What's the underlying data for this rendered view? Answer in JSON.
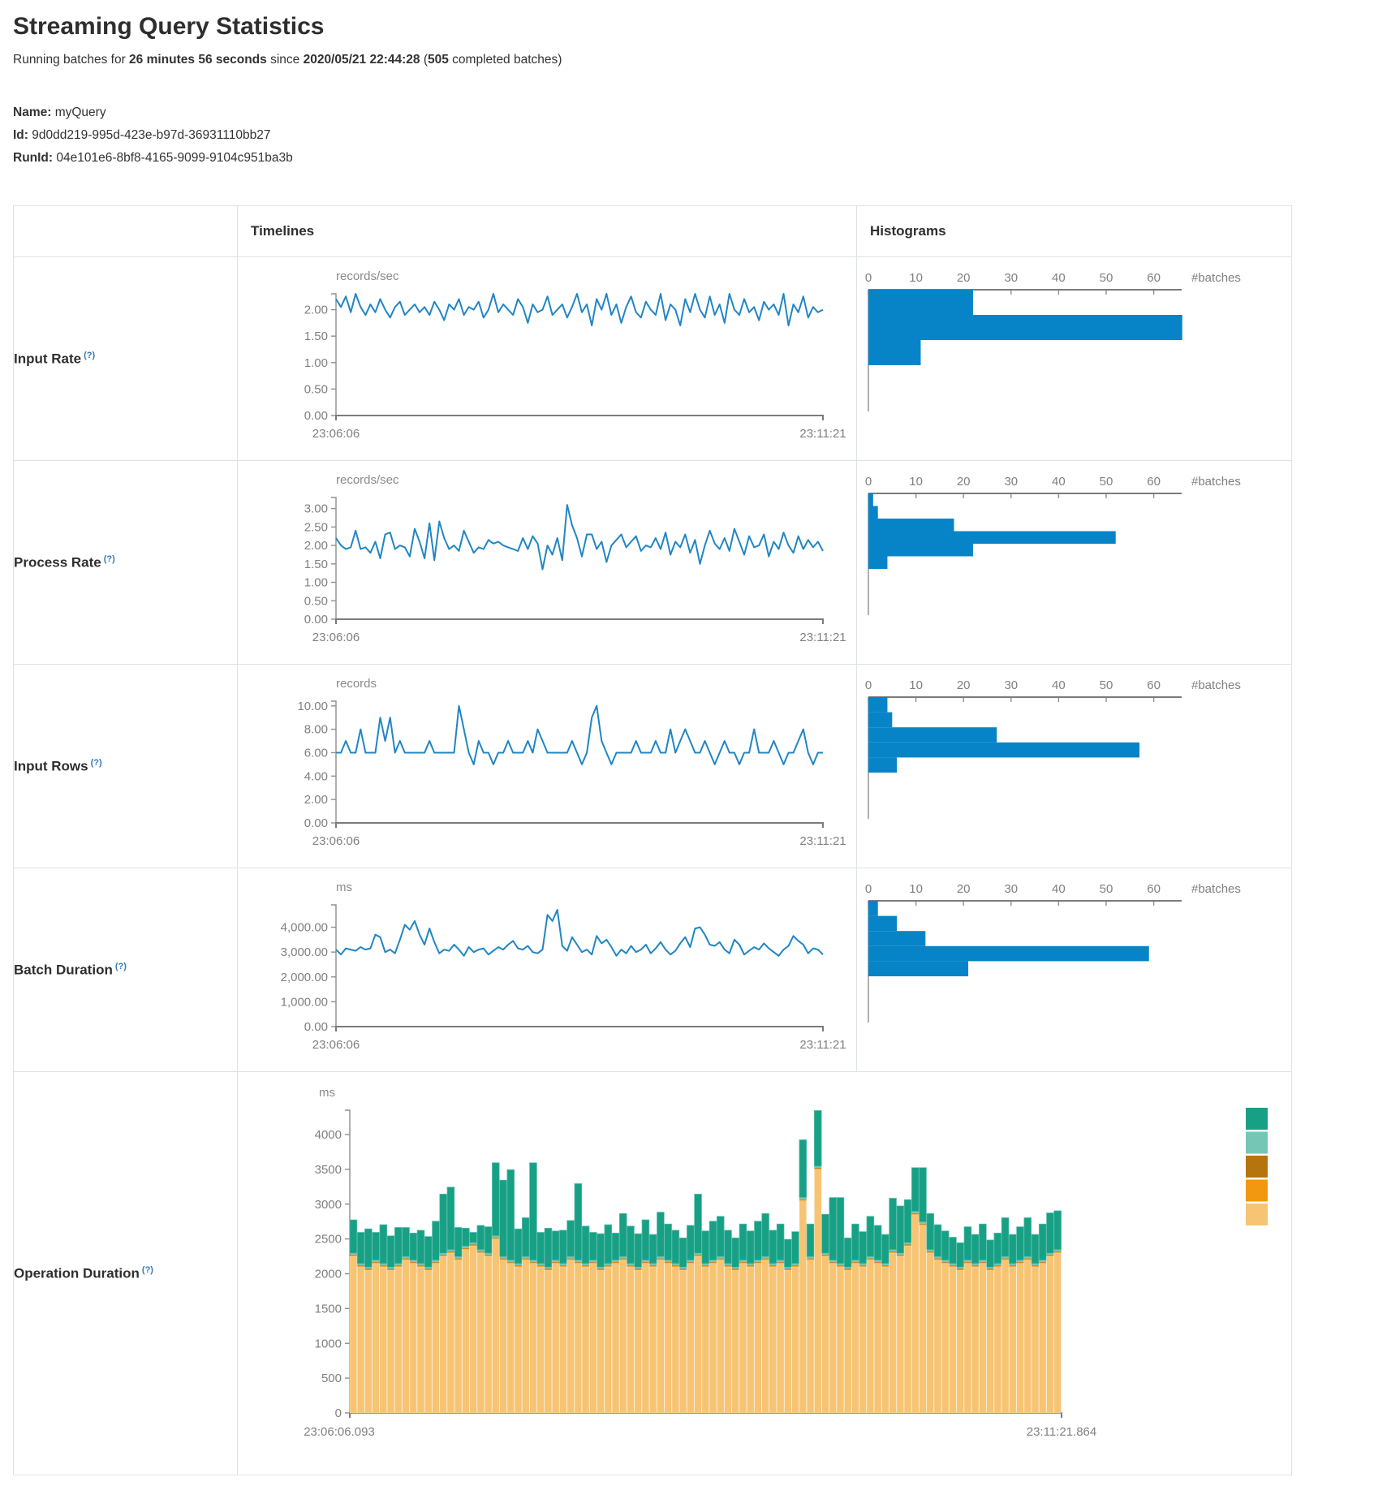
{
  "page": {
    "title": "Streaming Query Statistics",
    "subtitle": {
      "prefix": "Running batches for ",
      "duration": "26 minutes 56 seconds",
      "since": " since ",
      "start_time": "2020/05/21 22:44:28",
      "paren": " (",
      "completed_batches": "505",
      "suffix": " completed batches)"
    },
    "meta": {
      "name_label": "Name:",
      "name": " myQuery",
      "id_label": "Id:",
      "id": " 9d0dd219-995d-423e-b97d-36931110bb27",
      "runid_label": "RunId:",
      "runid": " 04e101e6-8bf8-4165-9099-9104c951ba3b"
    }
  },
  "table": {
    "timelines_header": "Timelines",
    "histograms_header": "Histograms",
    "help_marker": "(?)",
    "rows": [
      {
        "label": "Input Rate"
      },
      {
        "label": "Process Rate"
      },
      {
        "label": "Input Rows"
      },
      {
        "label": "Batch Duration"
      },
      {
        "label": "Operation Duration"
      }
    ]
  },
  "colors": {
    "line": "#2086C4",
    "histogram_bar": "#0784C8",
    "axis": "#8f8f8f",
    "tick_text": "#808080",
    "legend": [
      "#18A085",
      "#76C6B6",
      "#B6740F",
      "#F29710",
      "#F7C474"
    ]
  },
  "chart_data": [
    {
      "id": "input-rate-timeline",
      "type": "line",
      "title": "records/sec",
      "x": [
        "23:06:06",
        "23:11:21"
      ],
      "ylim": [
        0,
        2.3
      ],
      "grid": false,
      "yticks": [
        {
          "v": 2,
          "t": "2.00"
        },
        {
          "v": 1.5,
          "t": "1.50"
        },
        {
          "v": 1,
          "t": "1.00"
        },
        {
          "v": 0.5,
          "t": "0.50"
        },
        {
          "v": 0,
          "t": "0.00"
        }
      ],
      "values": [
        2.2,
        2.05,
        2.25,
        1.95,
        2.3,
        2.05,
        1.9,
        2.1,
        1.95,
        2.2,
        2.0,
        1.85,
        2.05,
        2.15,
        1.9,
        2.0,
        2.1,
        1.95,
        2.05,
        1.9,
        2.15,
        2.0,
        1.8,
        2.1,
        2.0,
        2.2,
        1.9,
        2.05,
        2.0,
        2.15,
        1.85,
        2.0,
        2.3,
        1.95,
        2.1,
        2.0,
        1.9,
        2.2,
        2.05,
        1.75,
        2.1,
        1.95,
        2.0,
        2.25,
        1.9,
        2.0,
        2.1,
        1.85,
        2.05,
        2.3,
        1.95,
        2.1,
        1.7,
        2.2,
        2.0,
        2.3,
        1.9,
        2.1,
        1.75,
        2.05,
        2.25,
        1.95,
        1.85,
        2.15,
        2.0,
        1.9,
        2.3,
        1.8,
        2.1,
        2.0,
        1.7,
        2.2,
        1.95,
        2.3,
        2.0,
        1.85,
        2.25,
        1.9,
        2.1,
        1.75,
        2.3,
        2.0,
        1.9,
        2.2,
        1.95,
        2.05,
        1.8,
        2.15,
        2.0,
        2.1,
        1.9,
        2.3,
        1.7,
        2.1,
        1.95,
        2.25,
        1.85,
        2.05,
        1.95,
        2.0
      ]
    },
    {
      "id": "input-rate-histogram",
      "type": "bar",
      "orientation": "horizontal",
      "xlabel": "#batches",
      "xticks": [
        0,
        10,
        20,
        30,
        40,
        50,
        60
      ],
      "xlim": [
        0,
        68
      ],
      "values": [
        22,
        66,
        11
      ]
    },
    {
      "id": "process-rate-timeline",
      "type": "line",
      "title": "records/sec",
      "x": [
        "23:06:06",
        "23:11:21"
      ],
      "ylim": [
        0,
        3.3
      ],
      "grid": false,
      "yticks": [
        {
          "v": 3,
          "t": "3.00"
        },
        {
          "v": 2.5,
          "t": "2.50"
        },
        {
          "v": 2,
          "t": "2.00"
        },
        {
          "v": 1.5,
          "t": "1.50"
        },
        {
          "v": 1,
          "t": "1.00"
        },
        {
          "v": 0.5,
          "t": "0.50"
        },
        {
          "v": 0,
          "t": "0.00"
        }
      ],
      "values": [
        2.2,
        2.0,
        1.9,
        1.95,
        2.4,
        1.9,
        1.95,
        1.8,
        2.1,
        1.65,
        2.3,
        2.35,
        1.9,
        2.0,
        1.95,
        1.7,
        2.45,
        2.1,
        1.65,
        2.6,
        1.6,
        2.65,
        2.2,
        1.9,
        2.0,
        1.85,
        2.4,
        2.1,
        1.8,
        1.95,
        1.9,
        2.15,
        2.05,
        2.1,
        2.0,
        1.95,
        1.9,
        1.85,
        2.2,
        1.9,
        2.25,
        2.05,
        1.35,
        2.0,
        1.75,
        2.2,
        1.6,
        3.1,
        2.55,
        2.2,
        1.7,
        2.3,
        2.3,
        1.9,
        2.1,
        1.55,
        2.0,
        2.15,
        2.3,
        1.95,
        2.1,
        2.25,
        1.85,
        2.0,
        1.95,
        2.2,
        1.9,
        2.35,
        1.75,
        2.1,
        1.95,
        2.3,
        1.8,
        2.15,
        1.5,
        2.0,
        2.4,
        2.05,
        1.9,
        2.2,
        1.85,
        2.45,
        2.1,
        1.75,
        2.25,
        1.95,
        2.0,
        2.3,
        1.7,
        2.1,
        1.9,
        2.35,
        2.0,
        1.8,
        2.25,
        1.9,
        2.15,
        1.95,
        2.1,
        1.85
      ]
    },
    {
      "id": "process-rate-histogram",
      "type": "bar",
      "orientation": "horizontal",
      "xlabel": "#batches",
      "xticks": [
        0,
        10,
        20,
        30,
        40,
        50,
        60
      ],
      "xlim": [
        0,
        68
      ],
      "values": [
        1,
        2,
        18,
        52,
        22,
        4
      ]
    },
    {
      "id": "input-rows-timeline",
      "type": "line",
      "title": "records",
      "x": [
        "23:06:06",
        "23:11:21"
      ],
      "ylim": [
        0,
        10.4
      ],
      "grid": false,
      "yticks": [
        {
          "v": 10,
          "t": "10.00"
        },
        {
          "v": 8,
          "t": "8.00"
        },
        {
          "v": 6,
          "t": "6.00"
        },
        {
          "v": 4,
          "t": "4.00"
        },
        {
          "v": 2,
          "t": "2.00"
        },
        {
          "v": 0,
          "t": "0.00"
        }
      ],
      "values": [
        6,
        6,
        7,
        6,
        6,
        8,
        6,
        6,
        6,
        9,
        7,
        9,
        6,
        7,
        6,
        6,
        6,
        6,
        6,
        7,
        6,
        6,
        6,
        6,
        6,
        10,
        8,
        6,
        5,
        7,
        6,
        6,
        5,
        6,
        6,
        7,
        6,
        6,
        6,
        7,
        6,
        8,
        7,
        6,
        6,
        6,
        6,
        6,
        7,
        6,
        5,
        6,
        9,
        10,
        7,
        6,
        5,
        6,
        6,
        6,
        6,
        7,
        6,
        6,
        6,
        7,
        6,
        6,
        8,
        6,
        7,
        8,
        7,
        6,
        6,
        7,
        6,
        5,
        6,
        7,
        6,
        6,
        5,
        6,
        6,
        8,
        6,
        6,
        6,
        7,
        6,
        5,
        6,
        6,
        7,
        8,
        6,
        5,
        6,
        6
      ]
    },
    {
      "id": "input-rows-histogram",
      "type": "bar",
      "orientation": "horizontal",
      "xlabel": "#batches",
      "xticks": [
        0,
        10,
        20,
        30,
        40,
        50,
        60
      ],
      "xlim": [
        0,
        68
      ],
      "values": [
        4,
        5,
        27,
        57,
        6
      ]
    },
    {
      "id": "batch-duration-timeline",
      "type": "line",
      "title": "ms",
      "x": [
        "23:06:06",
        "23:11:21"
      ],
      "ylim": [
        0,
        4900
      ],
      "grid": false,
      "yticks": [
        {
          "v": 4000,
          "t": "4,000.00"
        },
        {
          "v": 3000,
          "t": "3,000.00"
        },
        {
          "v": 2000,
          "t": "2,000.00"
        },
        {
          "v": 1000,
          "t": "1,000.00"
        },
        {
          "v": 0,
          "t": "0.00"
        }
      ],
      "values": [
        3100,
        2900,
        3150,
        3100,
        3050,
        3200,
        3100,
        3150,
        3700,
        3600,
        3000,
        3100,
        2950,
        3500,
        4100,
        3900,
        4250,
        3700,
        3300,
        3950,
        3400,
        2950,
        3100,
        3050,
        3300,
        3100,
        2850,
        3200,
        3000,
        3100,
        3150,
        2900,
        3050,
        3200,
        3100,
        3300,
        3450,
        3150,
        3100,
        3250,
        3000,
        2950,
        3100,
        4500,
        4250,
        4700,
        3250,
        3050,
        3600,
        3300,
        3000,
        3100,
        2900,
        3650,
        3350,
        3500,
        3200,
        2850,
        3100,
        2950,
        3250,
        3000,
        3100,
        3300,
        2950,
        3150,
        3400,
        3100,
        2900,
        3050,
        3350,
        3600,
        3200,
        3950,
        4000,
        3700,
        3300,
        3250,
        3400,
        3100,
        2950,
        3500,
        3300,
        2900,
        3050,
        3200,
        3100,
        3350,
        3150,
        3000,
        2850,
        3100,
        3250,
        3650,
        3450,
        3300,
        2950,
        3150,
        3100,
        2900
      ]
    },
    {
      "id": "batch-duration-histogram",
      "type": "bar",
      "orientation": "horizontal",
      "xlabel": "#batches",
      "xticks": [
        0,
        10,
        20,
        30,
        40,
        50,
        60
      ],
      "xlim": [
        0,
        68
      ],
      "values": [
        2,
        6,
        12,
        59,
        21
      ]
    },
    {
      "id": "operation-duration-stacked",
      "type": "bar",
      "stacked": true,
      "title": "ms",
      "x": [
        "23:06:06.093",
        "23:11:21.864"
      ],
      "ylim": [
        0,
        4350
      ],
      "grid": false,
      "legend_position": "right",
      "legend_colors": [
        "#18A085",
        "#76C6B6",
        "#B6740F",
        "#F29710",
        "#F7C474"
      ],
      "yticks": [
        {
          "v": 4000,
          "t": "4000"
        },
        {
          "v": 3500,
          "t": "3500"
        },
        {
          "v": 3000,
          "t": "3000"
        },
        {
          "v": 2500,
          "t": "2500"
        },
        {
          "v": 2000,
          "t": "2000"
        },
        {
          "v": 1500,
          "t": "1500"
        },
        {
          "v": 1000,
          "t": "1000"
        },
        {
          "v": 500,
          "t": "500"
        },
        {
          "v": 0,
          "t": "0"
        }
      ],
      "series": [
        {
          "name": "base-duration",
          "color": "#F7C474",
          "stroke": "rgba(255,255,255,0.45)",
          "values": [
            2250,
            2100,
            2050,
            2150,
            2100,
            2050,
            2100,
            2200,
            2150,
            2100,
            2050,
            2150,
            2250,
            2300,
            2200,
            2350,
            2400,
            2300,
            2250,
            2500,
            2200,
            2150,
            2100,
            2200,
            2150,
            2100,
            2050,
            2150,
            2100,
            2200,
            2150,
            2100,
            2150,
            2050,
            2100,
            2150,
            2200,
            2100,
            2050,
            2150,
            2100,
            2200,
            2150,
            2100,
            2050,
            2150,
            2250,
            2100,
            2150,
            2200,
            2100,
            2050,
            2150,
            2100,
            2150,
            2200,
            2100,
            2150,
            2050,
            2100,
            3050,
            2200,
            3500,
            2250,
            2150,
            2100,
            2050,
            2150,
            2100,
            2200,
            2150,
            2100,
            2300,
            2250,
            2400,
            2850,
            2700,
            2300,
            2200,
            2150,
            2100,
            2050,
            2150,
            2100,
            2150,
            2050,
            2100,
            2200,
            2100,
            2150,
            2200,
            2100,
            2150,
            2250,
            2300
          ]
        },
        {
          "name": "layer-2",
          "color": "#F29710",
          "constant": 10
        },
        {
          "name": "layer-3",
          "color": "#B6740F",
          "constant": 10
        },
        {
          "name": "layer-4",
          "color": "#76C6B6",
          "constant": 25
        },
        {
          "name": "top-duration",
          "color": "#18A085",
          "stroke": "#5FBFAE",
          "values": [
            480,
            450,
            550,
            400,
            560,
            450,
            520,
            420,
            390,
            480,
            440,
            560,
            850,
            900,
            420,
            260,
            150,
            350,
            380,
            1050,
            1100,
            1300,
            500,
            560,
            1400,
            450,
            560,
            420,
            480,
            520,
            1100,
            540,
            400,
            480,
            560,
            390,
            620,
            540,
            480,
            580,
            420,
            640,
            520,
            480,
            420,
            500,
            850,
            470,
            560,
            580,
            480,
            420,
            520,
            470,
            560,
            620,
            480,
            520,
            400,
            460,
            830,
            470,
            800,
            560,
            900,
            950,
            420,
            520,
            460,
            580,
            500,
            420,
            740,
            680,
            620,
            630,
            780,
            520,
            460,
            420,
            380,
            350,
            480,
            420,
            520,
            390,
            440,
            560,
            420,
            480,
            560,
            420,
            520,
            580,
            560
          ]
        }
      ]
    }
  ]
}
